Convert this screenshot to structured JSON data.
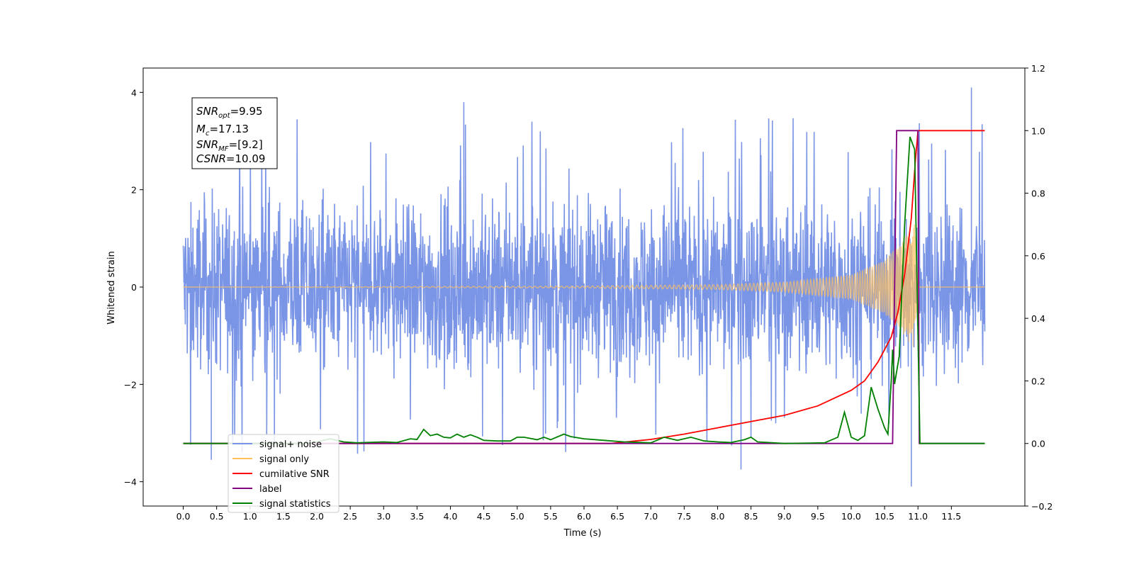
{
  "chart_data": {
    "type": "line",
    "xlabel": "Time (s)",
    "ylabel": "Whitened strain",
    "xlim": [
      -0.6,
      12.6
    ],
    "ylim_left": [
      -4.5,
      4.5
    ],
    "ylim_right": [
      -0.2,
      1.2
    ],
    "x_ticks": [
      "0.0",
      "0.5",
      "1.0",
      "1.5",
      "2.0",
      "2.5",
      "3.0",
      "3.5",
      "4.0",
      "4.5",
      "5.0",
      "5.5",
      "6.0",
      "6.5",
      "7.0",
      "7.5",
      "8.0",
      "8.5",
      "9.0",
      "9.5",
      "10.0",
      "10.5",
      "11.0",
      "11.5"
    ],
    "y_ticks_left": [
      "−4",
      "−2",
      "0",
      "2",
      "4"
    ],
    "y_ticks_right": [
      "−0.2",
      "0.0",
      "0.2",
      "0.4",
      "0.6",
      "0.8",
      "1.0",
      "1.2"
    ],
    "annotation": {
      "lines": [
        {
          "name": "SNR",
          "sub": "opt",
          "value": "=9.95"
        },
        {
          "name": "M",
          "sub": "c",
          "value": "=17.13"
        },
        {
          "name": "SNR",
          "sub": "MF",
          "value": "=[9.2]"
        },
        {
          "name": "CSNR",
          "sub": "",
          "value": "=10.09"
        }
      ]
    },
    "legend": {
      "position": "lower-left",
      "entries": [
        {
          "label": "signal+ noise",
          "color": "#7a95e6"
        },
        {
          "label": "signal only",
          "color": "#ffc060"
        },
        {
          "label": "cumilative SNR",
          "color": "#ff0000"
        },
        {
          "label": "label",
          "color": "#800080"
        },
        {
          "label": "signal statistics",
          "color": "#008000"
        }
      ]
    },
    "series": [
      {
        "name": "signal+ noise",
        "axis": "left",
        "x_range": [
          0.0,
          12.0
        ],
        "envelope": "gaussian noise, typical |y| about 2.5, peaks to 4.1 near x = 11.8, min about -4.1 near x = 10.9"
      },
      {
        "name": "signal only",
        "axis": "left",
        "x_range": [
          0.0,
          12.0
        ],
        "amplitude_points": [
          [
            0.0,
            0.0
          ],
          [
            6.0,
            0.02
          ],
          [
            8.0,
            0.05
          ],
          [
            9.0,
            0.1
          ],
          [
            10.0,
            0.25
          ],
          [
            10.5,
            0.55
          ],
          [
            10.8,
            1.0
          ],
          [
            10.95,
            1.3
          ],
          [
            11.0,
            0.0
          ],
          [
            12.0,
            0.0
          ]
        ]
      },
      {
        "name": "cumilative SNR",
        "axis": "right",
        "points": [
          [
            0.0,
            0.0
          ],
          [
            6.4,
            0.0
          ],
          [
            7.0,
            0.013
          ],
          [
            7.5,
            0.03
          ],
          [
            8.0,
            0.05
          ],
          [
            8.5,
            0.07
          ],
          [
            9.0,
            0.09
          ],
          [
            9.5,
            0.12
          ],
          [
            10.0,
            0.17
          ],
          [
            10.2,
            0.2
          ],
          [
            10.4,
            0.26
          ],
          [
            10.6,
            0.34
          ],
          [
            10.7,
            0.42
          ],
          [
            10.8,
            0.54
          ],
          [
            10.9,
            0.72
          ],
          [
            10.96,
            0.9
          ],
          [
            11.0,
            1.0
          ],
          [
            12.0,
            1.0
          ]
        ]
      },
      {
        "name": "label",
        "axis": "right",
        "points": [
          [
            0.0,
            0.0
          ],
          [
            10.62,
            0.0
          ],
          [
            10.68,
            1.0
          ],
          [
            11.0,
            1.0
          ],
          [
            11.02,
            0.0
          ],
          [
            12.0,
            0.0
          ]
        ]
      },
      {
        "name": "signal statistics",
        "axis": "right",
        "points": [
          [
            0.0,
            0.0
          ],
          [
            1.8,
            0.0
          ],
          [
            2.0,
            0.005
          ],
          [
            2.2,
            0.015
          ],
          [
            2.4,
            0.005
          ],
          [
            2.6,
            0.002
          ],
          [
            3.0,
            0.005
          ],
          [
            3.2,
            0.003
          ],
          [
            3.4,
            0.015
          ],
          [
            3.5,
            0.013
          ],
          [
            3.6,
            0.045
          ],
          [
            3.7,
            0.025
          ],
          [
            3.8,
            0.03
          ],
          [
            3.9,
            0.02
          ],
          [
            4.0,
            0.018
          ],
          [
            4.1,
            0.03
          ],
          [
            4.2,
            0.02
          ],
          [
            4.3,
            0.028
          ],
          [
            4.4,
            0.02
          ],
          [
            4.5,
            0.01
          ],
          [
            4.7,
            0.008
          ],
          [
            4.9,
            0.008
          ],
          [
            5.0,
            0.02
          ],
          [
            5.1,
            0.02
          ],
          [
            5.3,
            0.012
          ],
          [
            5.4,
            0.02
          ],
          [
            5.5,
            0.012
          ],
          [
            5.7,
            0.03
          ],
          [
            5.8,
            0.022
          ],
          [
            6.0,
            0.015
          ],
          [
            6.3,
            0.01
          ],
          [
            6.6,
            0.005
          ],
          [
            7.0,
            0.002
          ],
          [
            7.2,
            0.02
          ],
          [
            7.4,
            0.01
          ],
          [
            7.6,
            0.02
          ],
          [
            7.8,
            0.008
          ],
          [
            8.0,
            0.005
          ],
          [
            8.2,
            0.003
          ],
          [
            8.4,
            0.012
          ],
          [
            8.5,
            0.02
          ],
          [
            8.6,
            0.005
          ],
          [
            9.0,
            0.0
          ],
          [
            9.6,
            0.002
          ],
          [
            9.8,
            0.02
          ],
          [
            9.9,
            0.1
          ],
          [
            10.0,
            0.02
          ],
          [
            10.1,
            0.01
          ],
          [
            10.2,
            0.025
          ],
          [
            10.3,
            0.18
          ],
          [
            10.4,
            0.11
          ],
          [
            10.5,
            0.05
          ],
          [
            10.55,
            0.03
          ],
          [
            10.6,
            0.2
          ],
          [
            10.62,
            0.3
          ],
          [
            10.65,
            0.19
          ],
          [
            10.72,
            0.28
          ],
          [
            10.8,
            0.7
          ],
          [
            10.88,
            0.98
          ],
          [
            10.95,
            0.94
          ],
          [
            11.0,
            0.35
          ],
          [
            11.03,
            0.0
          ],
          [
            12.0,
            0.0
          ]
        ]
      }
    ]
  }
}
